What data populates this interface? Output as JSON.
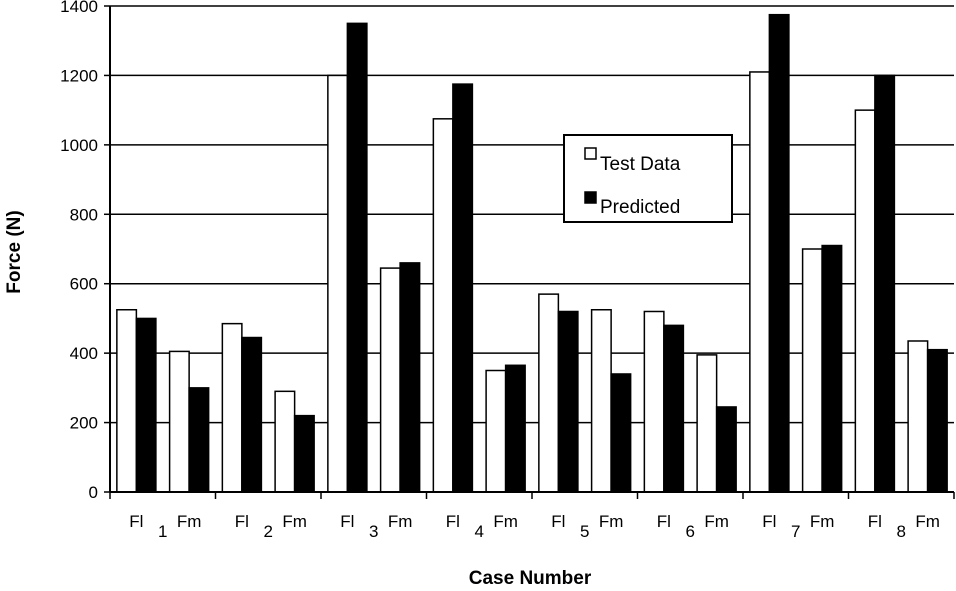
{
  "chart_data": {
    "type": "bar",
    "xlabel": "Case Number",
    "ylabel": "Force (N)",
    "ylim": [
      0,
      1400
    ],
    "yticks": [
      0,
      200,
      400,
      600,
      800,
      1000,
      1200,
      1400
    ],
    "grid": true,
    "legend_position": "center-right",
    "cases": [
      "1",
      "2",
      "3",
      "4",
      "5",
      "6",
      "7",
      "8"
    ],
    "categories": [
      "Fl",
      "Fm",
      "Fl",
      "Fm",
      "Fl",
      "Fm",
      "Fl",
      "Fm",
      "Fl",
      "Fm",
      "Fl",
      "Fm",
      "Fl",
      "Fm",
      "Fl",
      "Fm"
    ],
    "series": [
      {
        "name": "Test Data",
        "color": "#ffffff",
        "values": [
          525,
          405,
          485,
          290,
          1200,
          645,
          1075,
          350,
          570,
          525,
          520,
          395,
          1210,
          700,
          1100,
          435
        ]
      },
      {
        "name": "Predicted",
        "color": "#000000",
        "values": [
          500,
          300,
          445,
          220,
          1350,
          660,
          1175,
          365,
          520,
          340,
          480,
          245,
          1375,
          710,
          1200,
          410
        ]
      }
    ]
  }
}
